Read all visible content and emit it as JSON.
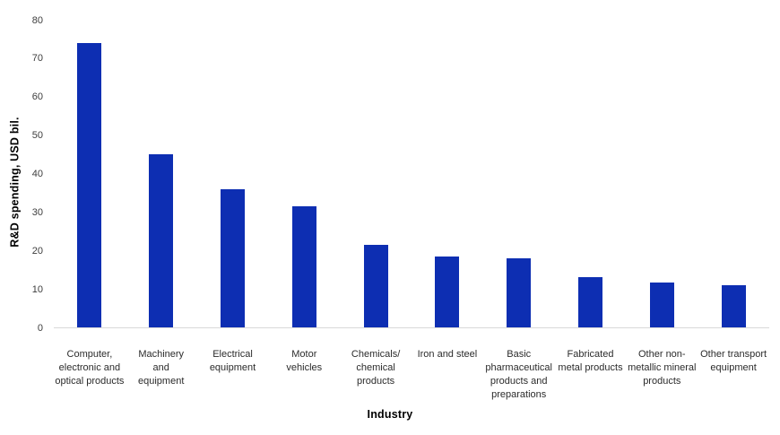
{
  "chart_data": {
    "type": "bar",
    "xlabel": "Industry",
    "ylabel": "R&D spending, USD bil.",
    "categories": [
      "Computer, electronic and optical products",
      "Machinery and equipment",
      "Electrical equipment",
      "Motor vehicles",
      "Chemicals/chemical products",
      "Iron and steel",
      "Basic pharmaceutical products and preparations",
      "Fabricated metal products",
      "Other non-metallic mineral products",
      "Other transport equipment"
    ],
    "category_labels": [
      "Computer,\nelectronic and\noptical products",
      "Machinery\nand\nequipment",
      "Electrical\nequipment",
      "Motor\nvehicles",
      "Chemicals/\nchemical\nproducts",
      "Iron and steel",
      "Basic\npharmaceutical\nproducts and\npreparations",
      "Fabricated\nmetal products",
      "Other non-\nmetallic mineral\nproducts",
      "Other transport\nequipment"
    ],
    "values": [
      74,
      45,
      36,
      31.5,
      21.5,
      18.5,
      18,
      13,
      11.7,
      11
    ],
    "ylim": [
      0,
      80
    ],
    "ytick_step": 10,
    "yticks": [
      0,
      10,
      20,
      30,
      40,
      50,
      60,
      70,
      80
    ],
    "grid": false,
    "legend": "none",
    "bar_color": "#0d2eb2",
    "axis_line_color": "#d9d9d9",
    "tick_label_color": "#3d3d3d",
    "category_label_color": "#2b2b2b"
  }
}
